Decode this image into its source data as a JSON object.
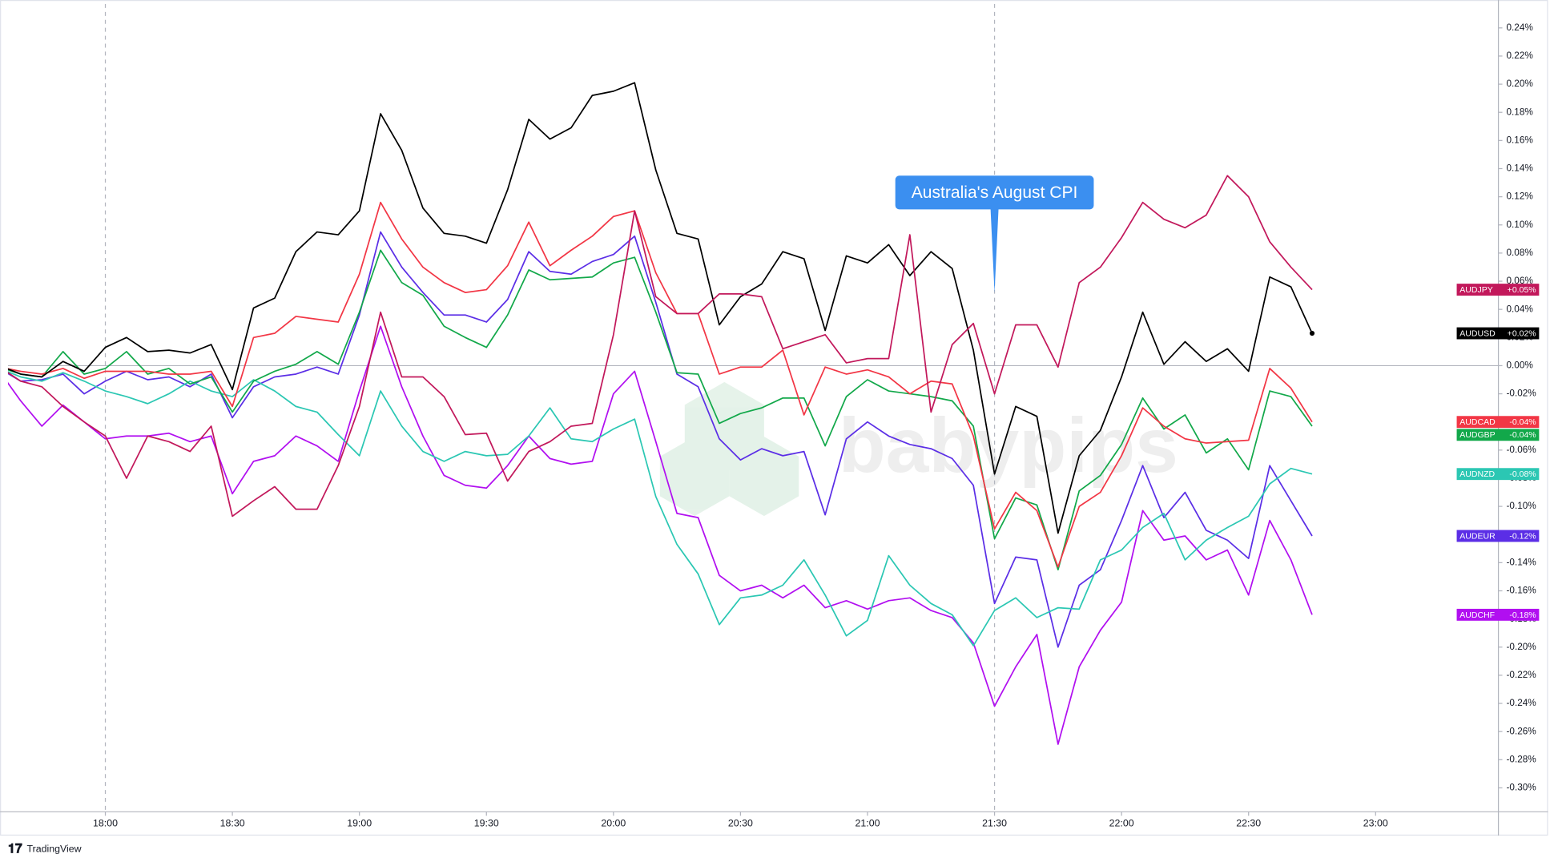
{
  "chart_data": {
    "type": "line",
    "annotation": {
      "text": "Australia's August CPI",
      "x": "21:30"
    },
    "dashed_lines": [
      "18:00",
      "21:30"
    ],
    "zero_line": true,
    "watermark": "babypips",
    "footer": "TradingView",
    "x": [
      "17:35",
      "17:40",
      "17:45",
      "17:50",
      "17:55",
      "18:00",
      "18:05",
      "18:10",
      "18:15",
      "18:20",
      "18:25",
      "18:30",
      "18:35",
      "18:40",
      "18:45",
      "18:50",
      "18:55",
      "19:00",
      "19:05",
      "19:10",
      "19:15",
      "19:20",
      "19:25",
      "19:30",
      "19:35",
      "19:40",
      "19:45",
      "19:50",
      "19:55",
      "20:00",
      "20:05",
      "20:10",
      "20:15",
      "20:20",
      "20:25",
      "20:30",
      "20:35",
      "20:40",
      "20:45",
      "20:50",
      "20:55",
      "21:00",
      "21:05",
      "21:10",
      "21:15",
      "21:20",
      "21:25",
      "21:30",
      "21:35",
      "21:40",
      "21:45",
      "21:50",
      "21:55",
      "22:00",
      "22:05",
      "22:10",
      "22:15",
      "22:20",
      "22:25",
      "22:30",
      "22:35",
      "22:40",
      "22:45"
    ],
    "xlim": [
      "17:37",
      "23:29"
    ],
    "xticks": [
      "18:00",
      "18:30",
      "19:00",
      "19:30",
      "20:00",
      "20:30",
      "21:00",
      "21:30",
      "22:00",
      "22:30",
      "23:00"
    ],
    "ylim": [
      -0.317,
      0.257
    ],
    "yticks": [
      {
        "value": 0.24,
        "label": "0.24%"
      },
      {
        "value": 0.22,
        "label": "0.22%"
      },
      {
        "value": 0.2,
        "label": "0.20%"
      },
      {
        "value": 0.18,
        "label": "0.18%"
      },
      {
        "value": 0.16,
        "label": "0.16%"
      },
      {
        "value": 0.14,
        "label": "0.14%"
      },
      {
        "value": 0.12,
        "label": "0.12%"
      },
      {
        "value": 0.1,
        "label": "0.10%"
      },
      {
        "value": 0.08,
        "label": "0.08%"
      },
      {
        "value": 0.06,
        "label": "0.06%"
      },
      {
        "value": 0.04,
        "label": "0.04%"
      },
      {
        "value": 0.02,
        "label": "0.02%"
      },
      {
        "value": 0,
        "label": "0.00%"
      },
      {
        "value": -0.02,
        "label": "-0.02%"
      },
      {
        "value": -0.04,
        "label": "-0.04%"
      },
      {
        "value": -0.06,
        "label": "-0.06%"
      },
      {
        "value": -0.08,
        "label": "-0.08%"
      },
      {
        "value": -0.1,
        "label": "-0.10%"
      },
      {
        "value": -0.12,
        "label": "-0.12%"
      },
      {
        "value": -0.14,
        "label": "-0.14%"
      },
      {
        "value": -0.16,
        "label": "-0.16%"
      },
      {
        "value": -0.18,
        "label": "-0.18%"
      },
      {
        "value": -0.2,
        "label": "-0.20%"
      },
      {
        "value": -0.22,
        "label": "-0.22%"
      },
      {
        "value": -0.24,
        "label": "-0.24%"
      },
      {
        "value": -0.26,
        "label": "-0.26%"
      },
      {
        "value": -0.28,
        "label": "-0.28%"
      },
      {
        "value": -0.3,
        "label": "-0.30%"
      }
    ],
    "series": [
      {
        "name": "AUDJPY",
        "color": "#c2185b",
        "last_label": "+0.05%",
        "values": [
          -0.001,
          -0.011,
          -0.015,
          -0.029,
          -0.04,
          -0.05,
          -0.08,
          -0.05,
          -0.054,
          -0.061,
          -0.043,
          -0.107,
          -0.096,
          -0.086,
          -0.102,
          -0.102,
          -0.071,
          -0.029,
          0.038,
          -0.008,
          -0.008,
          -0.022,
          -0.049,
          -0.048,
          -0.082,
          -0.061,
          -0.054,
          -0.043,
          -0.041,
          0.022,
          0.11,
          0.049,
          0.037,
          0.037,
          0.051,
          0.051,
          0.049,
          0.012,
          0.017,
          0.022,
          0.002,
          0.005,
          0.005,
          0.093,
          -0.033,
          0.015,
          0.03,
          -0.02,
          0.029,
          0.029,
          -0.001,
          0.059,
          0.07,
          0.091,
          0.116,
          0.104,
          0.098,
          0.107,
          0.135,
          0.12,
          0.088,
          0.07,
          0.054
        ]
      },
      {
        "name": "AUDUSD",
        "color": "#000000",
        "last_label": "+0.02%",
        "values": [
          0,
          -0.006,
          -0.008,
          0.003,
          -0.004,
          0.013,
          0.02,
          0.01,
          0.011,
          0.009,
          0.015,
          -0.017,
          0.041,
          0.048,
          0.081,
          0.095,
          0.093,
          0.11,
          0.179,
          0.153,
          0.112,
          0.094,
          0.092,
          0.087,
          0.125,
          0.175,
          0.161,
          0.169,
          0.192,
          0.195,
          0.201,
          0.139,
          0.094,
          0.09,
          0.029,
          0.049,
          0.058,
          0.081,
          0.076,
          0.025,
          0.078,
          0.073,
          0.086,
          0.064,
          0.081,
          0.069,
          0.011,
          -0.077,
          -0.029,
          -0.036,
          -0.119,
          -0.064,
          -0.046,
          -0.008,
          0.038,
          0.001,
          0.017,
          0.003,
          0.012,
          -0.004,
          0.063,
          0.056,
          0.023
        ]
      },
      {
        "name": "AUDCAD",
        "color": "#f23645",
        "last_label": "-0.04%",
        "values": [
          -0.001,
          -0.004,
          -0.006,
          -0.002,
          -0.009,
          -0.004,
          -0.004,
          -0.004,
          -0.006,
          -0.006,
          -0.004,
          -0.029,
          0.02,
          0.023,
          0.035,
          0.033,
          0.031,
          0.065,
          0.116,
          0.09,
          0.07,
          0.059,
          0.052,
          0.054,
          0.071,
          0.102,
          0.071,
          0.082,
          0.092,
          0.106,
          0.11,
          0.066,
          0.037,
          0.037,
          -0.006,
          -0.001,
          -0.001,
          0.011,
          -0.035,
          -0.001,
          -0.006,
          -0.003,
          -0.008,
          -0.02,
          -0.011,
          -0.013,
          -0.05,
          -0.116,
          -0.09,
          -0.103,
          -0.143,
          -0.1,
          -0.09,
          -0.064,
          -0.03,
          -0.043,
          -0.052,
          -0.055,
          -0.054,
          -0.053,
          -0.002,
          -0.016,
          -0.04
        ]
      },
      {
        "name": "AUDGBP",
        "color": "#12a84a",
        "last_label": "-0.04%",
        "values": [
          -0.001,
          -0.006,
          -0.008,
          0.01,
          -0.006,
          -0.002,
          0.01,
          -0.006,
          -0.002,
          -0.013,
          -0.008,
          -0.033,
          -0.011,
          -0.004,
          0.001,
          0.01,
          0.001,
          0.038,
          0.082,
          0.059,
          0.05,
          0.028,
          0.02,
          0.013,
          0.036,
          0.068,
          0.061,
          0.062,
          0.063,
          0.073,
          0.077,
          0.038,
          -0.005,
          -0.006,
          -0.041,
          -0.034,
          -0.03,
          -0.023,
          -0.023,
          -0.057,
          -0.022,
          -0.01,
          -0.018,
          -0.02,
          -0.022,
          -0.025,
          -0.043,
          -0.123,
          -0.094,
          -0.099,
          -0.145,
          -0.089,
          -0.078,
          -0.056,
          -0.023,
          -0.045,
          -0.035,
          -0.062,
          -0.052,
          -0.074,
          -0.018,
          -0.022,
          -0.043
        ]
      },
      {
        "name": "AUDNZD",
        "color": "#2bc7b3",
        "last_label": "-0.08%",
        "values": [
          -0.002,
          -0.008,
          -0.011,
          -0.005,
          -0.011,
          -0.018,
          -0.022,
          -0.027,
          -0.02,
          -0.011,
          -0.018,
          -0.022,
          -0.01,
          -0.018,
          -0.029,
          -0.033,
          -0.049,
          -0.064,
          -0.018,
          -0.043,
          -0.061,
          -0.068,
          -0.061,
          -0.064,
          -0.063,
          -0.05,
          -0.03,
          -0.052,
          -0.054,
          -0.045,
          -0.038,
          -0.093,
          -0.127,
          -0.148,
          -0.184,
          -0.165,
          -0.163,
          -0.156,
          -0.138,
          -0.163,
          -0.192,
          -0.181,
          -0.135,
          -0.156,
          -0.169,
          -0.177,
          -0.199,
          -0.174,
          -0.165,
          -0.179,
          -0.172,
          -0.173,
          -0.138,
          -0.131,
          -0.115,
          -0.105,
          -0.138,
          -0.124,
          -0.115,
          -0.107,
          -0.084,
          -0.073,
          -0.077
        ]
      },
      {
        "name": "AUDEUR",
        "color": "#5b2ee6",
        "last_label": "-0.12%",
        "values": [
          -0.002,
          -0.011,
          -0.01,
          -0.006,
          -0.02,
          -0.011,
          -0.004,
          -0.01,
          -0.008,
          -0.015,
          -0.006,
          -0.037,
          -0.015,
          -0.008,
          -0.006,
          -0.001,
          -0.006,
          0.036,
          0.095,
          0.07,
          0.052,
          0.036,
          0.036,
          0.031,
          0.047,
          0.081,
          0.067,
          0.065,
          0.074,
          0.079,
          0.092,
          0.045,
          -0.006,
          -0.015,
          -0.052,
          -0.067,
          -0.059,
          -0.064,
          -0.061,
          -0.106,
          -0.052,
          -0.04,
          -0.05,
          -0.056,
          -0.059,
          -0.066,
          -0.085,
          -0.169,
          -0.136,
          -0.138,
          -0.2,
          -0.156,
          -0.145,
          -0.11,
          -0.071,
          -0.108,
          -0.09,
          -0.117,
          -0.124,
          -0.137,
          -0.071,
          -0.096,
          -0.121
        ]
      },
      {
        "name": "AUDCHF",
        "color": "#b10ff0",
        "last_label": "-0.18%",
        "values": [
          -0.004,
          -0.025,
          -0.043,
          -0.028,
          -0.04,
          -0.052,
          -0.05,
          -0.05,
          -0.048,
          -0.054,
          -0.05,
          -0.091,
          -0.068,
          -0.064,
          -0.05,
          -0.057,
          -0.068,
          -0.018,
          0.028,
          -0.015,
          -0.05,
          -0.078,
          -0.085,
          -0.087,
          -0.071,
          -0.05,
          -0.066,
          -0.07,
          -0.068,
          -0.02,
          -0.004,
          -0.054,
          -0.105,
          -0.108,
          -0.149,
          -0.16,
          -0.156,
          -0.165,
          -0.156,
          -0.172,
          -0.167,
          -0.173,
          -0.167,
          -0.165,
          -0.174,
          -0.179,
          -0.197,
          -0.242,
          -0.214,
          -0.191,
          -0.269,
          -0.214,
          -0.188,
          -0.168,
          -0.103,
          -0.124,
          -0.121,
          -0.138,
          -0.131,
          -0.163,
          -0.11,
          -0.138,
          -0.177
        ]
      }
    ]
  }
}
